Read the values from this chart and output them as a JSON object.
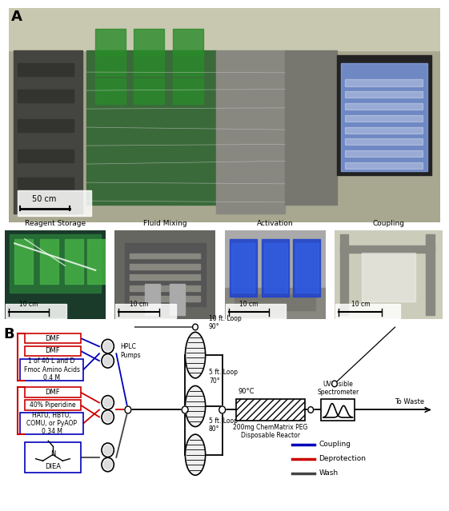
{
  "panel_A_label": "A",
  "panel_B_label": "B",
  "scale_bar_A": "50 cm",
  "scale_bar_small": "10 cm",
  "small_titles": [
    "Reagent Storage",
    "Fluid Mixing",
    "Activation",
    "Coupling"
  ],
  "legend_items": [
    {
      "label": "Coupling",
      "color": "#0000bb"
    },
    {
      "label": "Deprotection",
      "color": "#cc0000"
    },
    {
      "label": "Wash",
      "color": "#444444"
    }
  ],
  "hplc_label": "HPLC\nPumps",
  "loop1_label": "10 ft. Loop\n90°",
  "loop2_label": "5 ft. Loop\n70°",
  "loop3_label": "5 ft. Loop\n80°",
  "reactor_label": "200mg ChemMatrix PEG\nDisposable Reactor",
  "reactor_temp": "90°C",
  "uv_label": "UV-Visible\nSpectrometer",
  "waste_label": "To Waste",
  "bg_color": "#ffffff"
}
